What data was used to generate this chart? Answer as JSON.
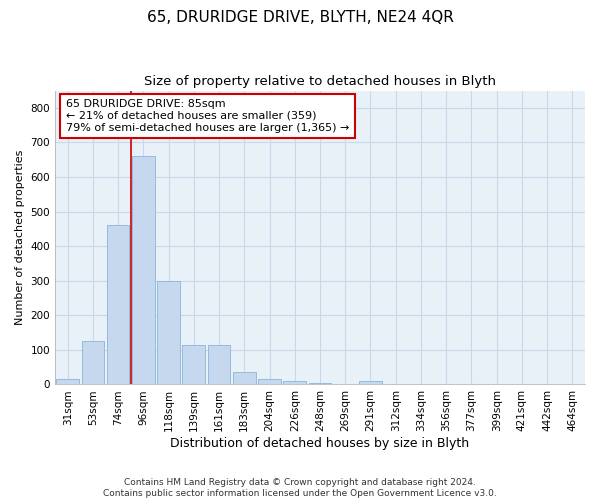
{
  "title": "65, DRURIDGE DRIVE, BLYTH, NE24 4QR",
  "subtitle": "Size of property relative to detached houses in Blyth",
  "xlabel": "Distribution of detached houses by size in Blyth",
  "ylabel": "Number of detached properties",
  "categories": [
    "31sqm",
    "53sqm",
    "74sqm",
    "96sqm",
    "118sqm",
    "139sqm",
    "161sqm",
    "183sqm",
    "204sqm",
    "226sqm",
    "248sqm",
    "269sqm",
    "291sqm",
    "312sqm",
    "334sqm",
    "356sqm",
    "377sqm",
    "399sqm",
    "421sqm",
    "442sqm",
    "464sqm"
  ],
  "values": [
    15,
    125,
    460,
    660,
    300,
    115,
    115,
    35,
    15,
    10,
    5,
    0,
    10,
    0,
    0,
    0,
    0,
    0,
    0,
    0,
    0
  ],
  "bar_color": "#c5d8ee",
  "bar_edge_color": "#8ab4d8",
  "annotation_text": "65 DRURIDGE DRIVE: 85sqm\n← 21% of detached houses are smaller (359)\n79% of semi-detached houses are larger (1,365) →",
  "annotation_box_color": "#ffffff",
  "annotation_box_edge_color": "#cc0000",
  "vline_color": "#cc0000",
  "ylim": [
    0,
    850
  ],
  "yticks": [
    0,
    100,
    200,
    300,
    400,
    500,
    600,
    700,
    800
  ],
  "grid_color": "#c8d8e8",
  "bg_color": "#e8f0f8",
  "footer": "Contains HM Land Registry data © Crown copyright and database right 2024.\nContains public sector information licensed under the Open Government Licence v3.0.",
  "title_fontsize": 11,
  "subtitle_fontsize": 9.5,
  "xlabel_fontsize": 9,
  "ylabel_fontsize": 8,
  "tick_fontsize": 7.5,
  "annotation_fontsize": 8,
  "footer_fontsize": 6.5
}
